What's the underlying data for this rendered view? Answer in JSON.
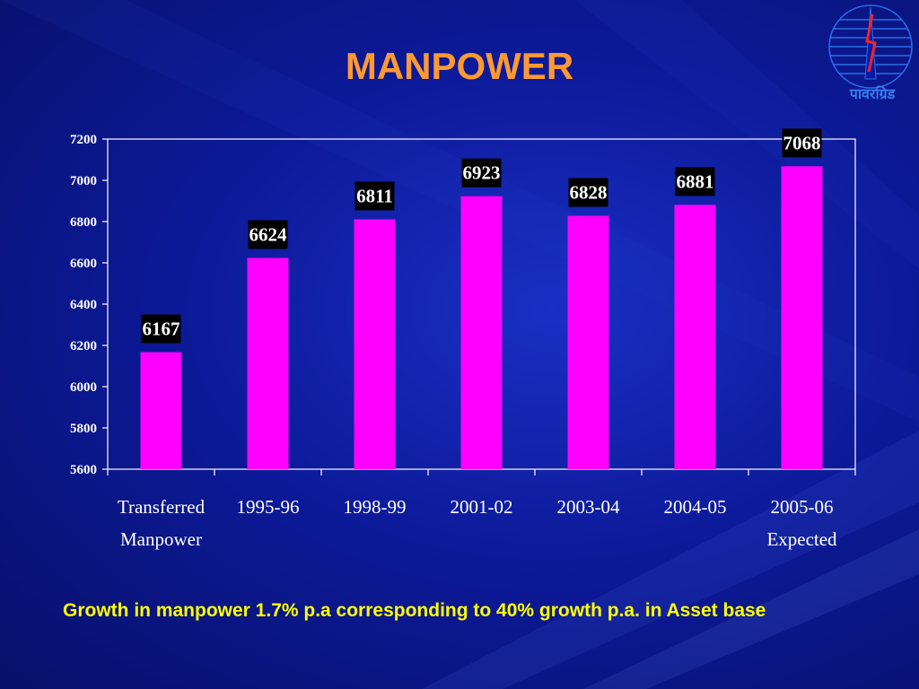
{
  "slide": {
    "title": "MANPOWER",
    "footnote": "Growth in manpower 1.7% p.a corresponding to 40% growth p.a.  in Asset base"
  },
  "logo": {
    "text": "पावरग्रिड"
  },
  "colors": {
    "bar": "#ff00ff",
    "title": "#ff9933",
    "footnote": "#ffff00",
    "axis": "#ffffff"
  },
  "chart_data": {
    "type": "bar",
    "categories": [
      [
        "Transferred",
        "Manpower"
      ],
      [
        "1995-96"
      ],
      [
        "1998-99"
      ],
      [
        "2001-02"
      ],
      [
        "2003-04"
      ],
      [
        "2004-05"
      ],
      [
        "2005-06",
        "Expected"
      ]
    ],
    "values": [
      6167,
      6624,
      6811,
      6923,
      6828,
      6881,
      7068
    ],
    "data_labels": [
      "6167",
      "6624",
      "6811",
      "6923",
      "6828",
      "6881",
      "7068"
    ],
    "ylim": [
      5600,
      7200
    ],
    "yticks": [
      5600,
      5800,
      6000,
      6200,
      6400,
      6600,
      6800,
      7000,
      7200
    ],
    "grid": false,
    "legend": "none"
  }
}
